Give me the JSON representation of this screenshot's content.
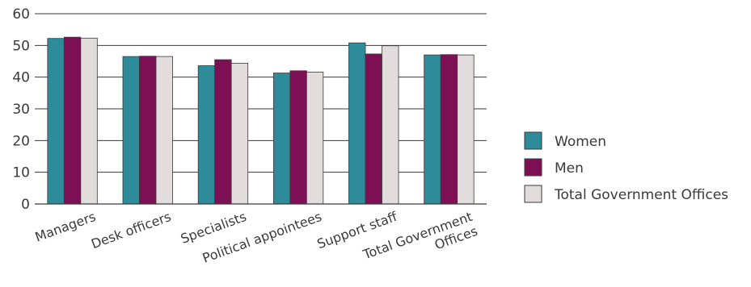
{
  "chart_data": {
    "type": "bar",
    "title": "",
    "xlabel": "",
    "ylabel": "",
    "ylim": [
      0,
      60
    ],
    "yticks": [
      0,
      10,
      20,
      30,
      40,
      50,
      60
    ],
    "grid": true,
    "legend_position": "right",
    "categories": [
      "Managers",
      "Desk officers",
      "Specialists",
      "Political appointees",
      "Support staff",
      "Total Government Offices"
    ],
    "category_label_lines": [
      [
        "Managers"
      ],
      [
        "Desk officers"
      ],
      [
        "Specialists"
      ],
      [
        "Political appointees"
      ],
      [
        "Support staff"
      ],
      [
        "Total Government",
        "Offices"
      ]
    ],
    "series": [
      {
        "name": "Women",
        "color": "#2e8b9a",
        "values": [
          52.2,
          46.5,
          43.6,
          41.3,
          50.8,
          47.0
        ]
      },
      {
        "name": "Men",
        "color": "#7d0f55",
        "values": [
          52.6,
          46.6,
          45.5,
          42.0,
          47.3,
          47.1
        ]
      },
      {
        "name": "Total Government Offices",
        "color": "#e2dcdd",
        "values": [
          52.3,
          46.5,
          44.4,
          41.6,
          49.9,
          47.0
        ]
      }
    ]
  }
}
